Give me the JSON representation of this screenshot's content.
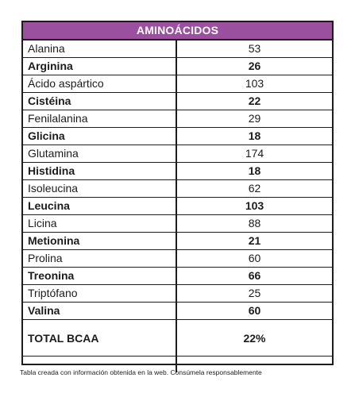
{
  "table": {
    "title": "AMINOÁCIDOS",
    "rows": [
      {
        "name": "Alanina",
        "value": "53",
        "bold": false
      },
      {
        "name": "Arginina",
        "value": "26",
        "bold": true
      },
      {
        "name": "Ácido aspártico",
        "value": "103",
        "bold": false
      },
      {
        "name": "Cistéina",
        "value": "22",
        "bold": true
      },
      {
        "name": "Fenilalanina",
        "value": "29",
        "bold": false
      },
      {
        "name": "Glicina",
        "value": "18",
        "bold": true
      },
      {
        "name": "Glutamina",
        "value": "174",
        "bold": false
      },
      {
        "name": "Histidina",
        "value": "18",
        "bold": true
      },
      {
        "name": "Isoleucina",
        "value": "62",
        "bold": false
      },
      {
        "name": "Leucina",
        "value": "103",
        "bold": true
      },
      {
        "name": "Licina",
        "value": "88",
        "bold": false
      },
      {
        "name": "Metionina",
        "value": "21",
        "bold": true
      },
      {
        "name": "Prolina",
        "value": "60",
        "bold": false
      },
      {
        "name": "Treonina",
        "value": "66",
        "bold": true
      },
      {
        "name": "Triptófano",
        "value": "25",
        "bold": false
      },
      {
        "name": "Valina",
        "value": "60",
        "bold": true
      }
    ],
    "total": {
      "name": "TOTAL BCAA",
      "value": "22%"
    }
  },
  "footnote": "Tabla creada con información obtenida en la web. Consúmela responsablemente",
  "colors": {
    "header_background": "#9b4f9f",
    "border": "#1c1c1c"
  }
}
